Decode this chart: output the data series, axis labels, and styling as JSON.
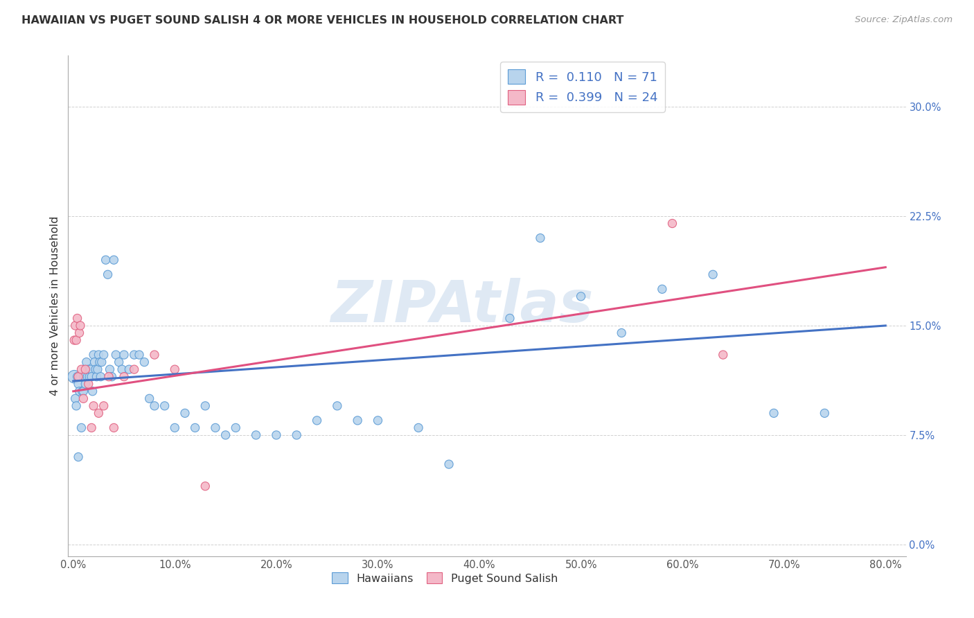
{
  "title": "HAWAIIAN VS PUGET SOUND SALISH 4 OR MORE VEHICLES IN HOUSEHOLD CORRELATION CHART",
  "source": "Source: ZipAtlas.com",
  "ylabel": "4 or more Vehicles in Household",
  "r_hawaiian": 0.11,
  "n_hawaiian": 71,
  "r_salish": 0.399,
  "n_salish": 24,
  "color_hawaiian_face": "#b8d4ed",
  "color_hawaiian_edge": "#5b9bd5",
  "color_salish_face": "#f4b8c8",
  "color_salish_edge": "#e06080",
  "color_line_hawaiian": "#4472c4",
  "color_line_salish": "#e05080",
  "color_text_blue": "#4472c4",
  "color_grid": "#d0d0d0",
  "legend_label_color": "#4472c4",
  "hawaiian_x": [
    0.001,
    0.002,
    0.003,
    0.004,
    0.005,
    0.005,
    0.006,
    0.007,
    0.008,
    0.009,
    0.01,
    0.01,
    0.011,
    0.012,
    0.013,
    0.014,
    0.015,
    0.016,
    0.017,
    0.018,
    0.019,
    0.02,
    0.021,
    0.022,
    0.023,
    0.024,
    0.025,
    0.026,
    0.027,
    0.028,
    0.03,
    0.032,
    0.034,
    0.036,
    0.038,
    0.04,
    0.042,
    0.045,
    0.048,
    0.05,
    0.055,
    0.06,
    0.065,
    0.07,
    0.075,
    0.08,
    0.09,
    0.1,
    0.11,
    0.12,
    0.13,
    0.14,
    0.15,
    0.16,
    0.18,
    0.2,
    0.22,
    0.24,
    0.26,
    0.28,
    0.3,
    0.34,
    0.37,
    0.43,
    0.46,
    0.5,
    0.54,
    0.58,
    0.63,
    0.69,
    0.74
  ],
  "hawaiian_y": [
    0.115,
    0.1,
    0.095,
    0.115,
    0.06,
    0.11,
    0.105,
    0.115,
    0.08,
    0.105,
    0.115,
    0.105,
    0.115,
    0.11,
    0.125,
    0.115,
    0.12,
    0.115,
    0.12,
    0.115,
    0.105,
    0.13,
    0.125,
    0.12,
    0.115,
    0.12,
    0.13,
    0.125,
    0.115,
    0.125,
    0.13,
    0.195,
    0.185,
    0.12,
    0.115,
    0.195,
    0.13,
    0.125,
    0.12,
    0.13,
    0.12,
    0.13,
    0.13,
    0.125,
    0.1,
    0.095,
    0.095,
    0.08,
    0.09,
    0.08,
    0.095,
    0.08,
    0.075,
    0.08,
    0.075,
    0.075,
    0.075,
    0.085,
    0.095,
    0.085,
    0.085,
    0.08,
    0.055,
    0.155,
    0.21,
    0.17,
    0.145,
    0.175,
    0.185,
    0.09,
    0.09
  ],
  "hawaiian_sizes": [
    80,
    35,
    35,
    35,
    35,
    35,
    35,
    35,
    35,
    35,
    35,
    35,
    35,
    35,
    35,
    35,
    35,
    35,
    35,
    35,
    35,
    35,
    35,
    35,
    35,
    35,
    35,
    35,
    35,
    35,
    35,
    35,
    35,
    35,
    35,
    35,
    35,
    35,
    35,
    35,
    35,
    35,
    35,
    35,
    35,
    35,
    35,
    35,
    35,
    35,
    35,
    35,
    35,
    35,
    35,
    35,
    35,
    35,
    35,
    35,
    35,
    35,
    35,
    35,
    35,
    35,
    35,
    35,
    35,
    35,
    35
  ],
  "salish_x": [
    0.001,
    0.002,
    0.003,
    0.004,
    0.005,
    0.006,
    0.007,
    0.008,
    0.01,
    0.012,
    0.015,
    0.018,
    0.02,
    0.025,
    0.03,
    0.035,
    0.04,
    0.05,
    0.06,
    0.08,
    0.1,
    0.13,
    0.59,
    0.64
  ],
  "salish_y": [
    0.14,
    0.15,
    0.14,
    0.155,
    0.115,
    0.145,
    0.15,
    0.12,
    0.1,
    0.12,
    0.11,
    0.08,
    0.095,
    0.09,
    0.095,
    0.115,
    0.08,
    0.115,
    0.12,
    0.13,
    0.12,
    0.04,
    0.22,
    0.13
  ],
  "salish_sizes": [
    35,
    35,
    35,
    35,
    35,
    35,
    35,
    35,
    35,
    35,
    35,
    35,
    35,
    35,
    35,
    35,
    35,
    35,
    35,
    35,
    35,
    35,
    35,
    35
  ],
  "line_hawaiian_x0": 0.0,
  "line_hawaiian_x1": 0.8,
  "line_hawaiian_y0": 0.112,
  "line_hawaiian_y1": 0.15,
  "line_salish_x0": 0.0,
  "line_salish_x1": 0.8,
  "line_salish_y0": 0.105,
  "line_salish_y1": 0.19,
  "xlim": [
    -0.005,
    0.82
  ],
  "ylim": [
    -0.008,
    0.335
  ],
  "xtick_vals": [
    0.0,
    0.1,
    0.2,
    0.3,
    0.4,
    0.5,
    0.6,
    0.7,
    0.8
  ],
  "xtick_labels": [
    "0.0%",
    "10.0%",
    "20.0%",
    "30.0%",
    "40.0%",
    "50.0%",
    "60.0%",
    "70.0%",
    "80.0%"
  ],
  "ytick_vals": [
    0.0,
    0.075,
    0.15,
    0.225,
    0.3
  ],
  "ytick_labels": [
    "0.0%",
    "7.5%",
    "15.0%",
    "22.5%",
    "30.0%"
  ],
  "watermark": "ZIPAtlas",
  "legend1_label1": "R =  0.110   N = 71",
  "legend1_label2": "R =  0.399   N = 24",
  "legend2_label1": "Hawaiians",
  "legend2_label2": "Puget Sound Salish"
}
